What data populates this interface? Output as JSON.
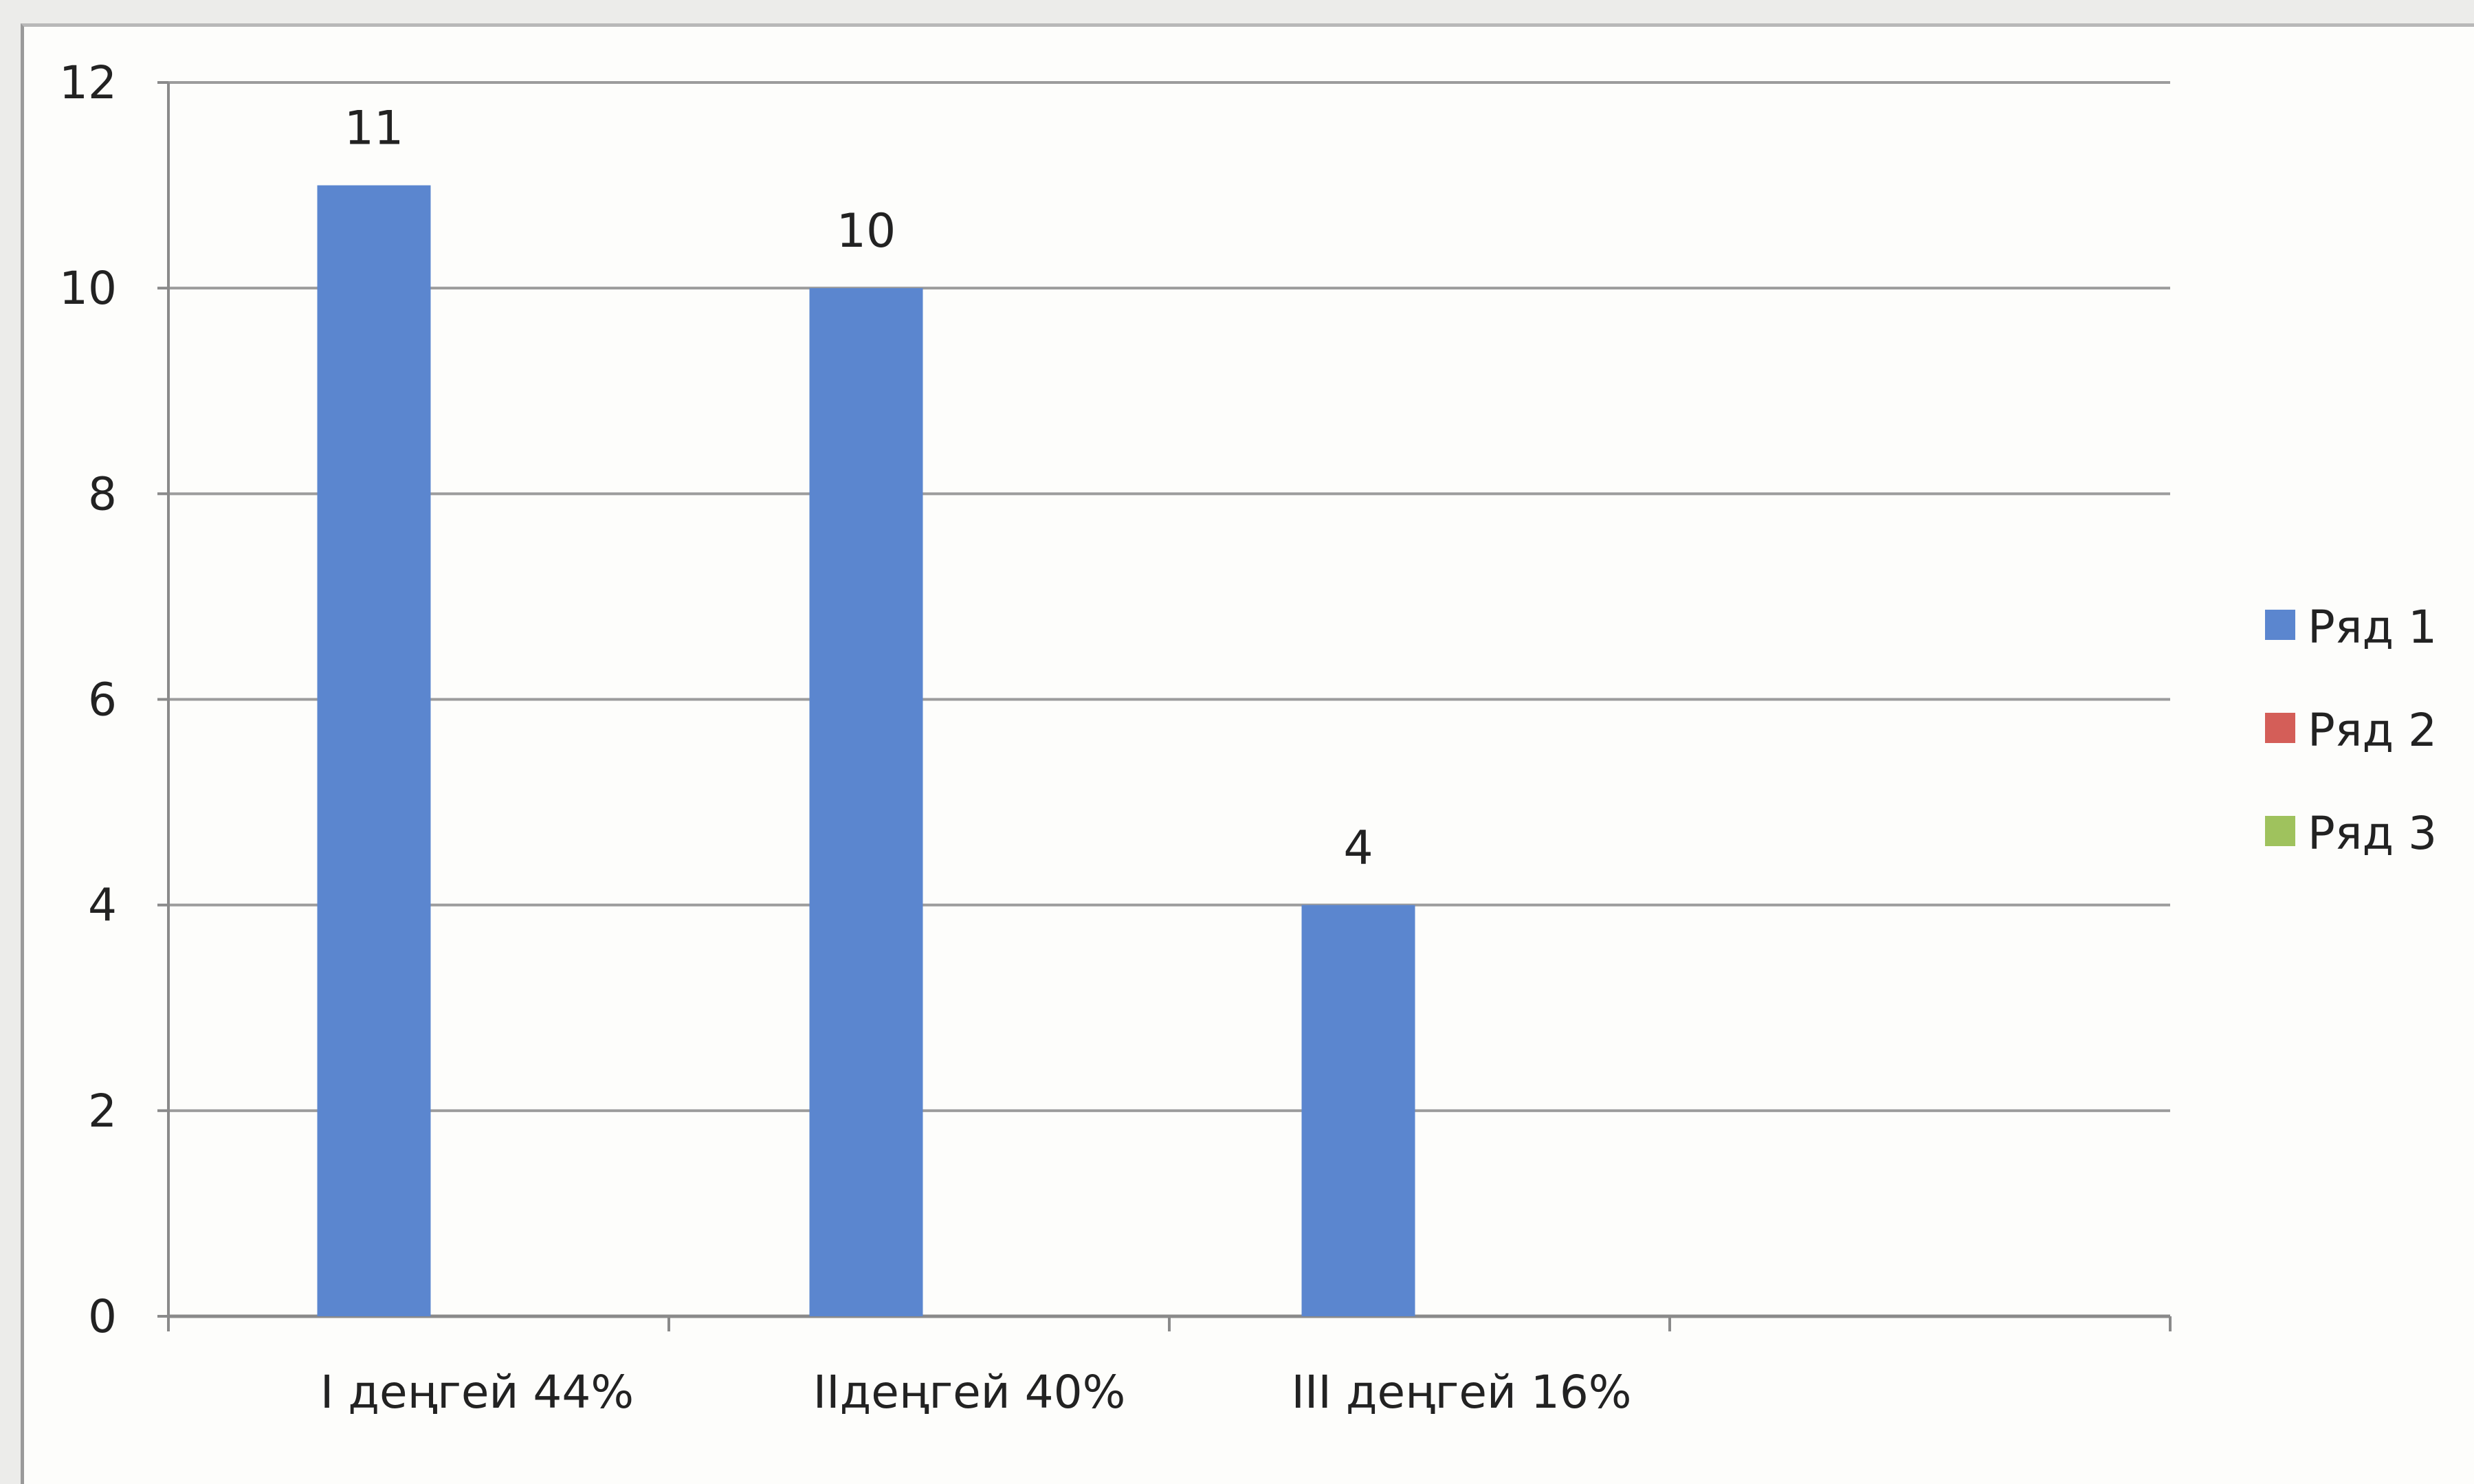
{
  "chart_data": {
    "type": "bar",
    "categories": [
      "I деңгей 44%",
      "IIдеңгей 40%",
      "III деңгей 16%",
      ""
    ],
    "series": [
      {
        "name": "Ряд 1",
        "values": [
          11,
          10,
          4,
          null
        ],
        "color": "#5b86cf"
      },
      {
        "name": "Ряд 2",
        "values": [
          null,
          null,
          null,
          null
        ],
        "color": "#d45e58"
      },
      {
        "name": "Ряд 3",
        "values": [
          null,
          null,
          null,
          null
        ],
        "color": "#9fc25d"
      }
    ],
    "data_labels": [
      "11",
      "10",
      "4"
    ],
    "yticks": [
      "0",
      "2",
      "4",
      "6",
      "8",
      "10",
      "12"
    ],
    "ylim": [
      0,
      12
    ],
    "grid": true,
    "legend_position": "right",
    "title": "",
    "xlabel": "",
    "ylabel": ""
  }
}
